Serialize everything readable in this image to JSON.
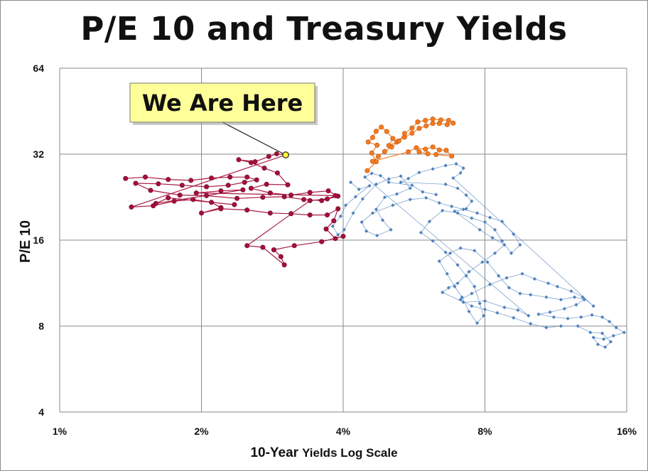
{
  "chart_data": {
    "type": "scatter",
    "title": "P/E 10 and Treasury Yields",
    "xlabel_bold": "10-Year",
    "xlabel_rest": "Yields Log Scale",
    "ylabel": "P/E 10",
    "x_scale": "log",
    "y_scale": "log",
    "xlim": [
      1,
      16
    ],
    "ylim": [
      4,
      64
    ],
    "x_ticks": [
      1,
      2,
      4,
      8,
      16
    ],
    "x_tick_labels": [
      "1%",
      "2%",
      "4%",
      "8%",
      "16%"
    ],
    "y_ticks": [
      4,
      8,
      16,
      32,
      64
    ],
    "y_tick_labels": [
      "4",
      "8",
      "16",
      "32",
      "64"
    ],
    "grid": true,
    "annotation": {
      "text": "We Are Here",
      "target": {
        "x": 3.02,
        "y": 31.8
      }
    },
    "series": [
      {
        "color": "#4f81bd",
        "marker": "diamond",
        "points": [
          [
            4.15,
            25.5
          ],
          [
            4.32,
            24.1
          ],
          [
            4.55,
            24.8
          ],
          [
            4.25,
            22.7
          ],
          [
            4.05,
            21.2
          ],
          [
            3.95,
            19.4
          ],
          [
            3.8,
            17.9
          ],
          [
            3.9,
            16.7
          ],
          [
            4.02,
            17.4
          ],
          [
            4.2,
            19.9
          ],
          [
            4.4,
            22.3
          ],
          [
            4.7,
            25.1
          ],
          [
            5.0,
            26.2
          ],
          [
            5.3,
            26.8
          ],
          [
            5.55,
            24.3
          ],
          [
            5.2,
            23.2
          ],
          [
            4.9,
            22.6
          ],
          [
            4.7,
            20.5
          ],
          [
            4.85,
            18.8
          ],
          [
            5.05,
            17.4
          ],
          [
            4.72,
            16.6
          ],
          [
            4.48,
            17.2
          ],
          [
            4.38,
            18.5
          ],
          [
            4.62,
            19.9
          ],
          [
            5.1,
            21.2
          ],
          [
            5.55,
            22.2
          ],
          [
            6.0,
            22.5
          ],
          [
            6.4,
            21.6
          ],
          [
            6.8,
            21.0
          ],
          [
            7.2,
            20.5
          ],
          [
            7.7,
            19.9
          ],
          [
            8.2,
            19.2
          ],
          [
            8.7,
            18.6
          ],
          [
            9.2,
            16.8
          ],
          [
            9.5,
            15.4
          ],
          [
            9.1,
            14.4
          ],
          [
            8.7,
            15.9
          ],
          [
            8.4,
            17.4
          ],
          [
            8.0,
            18.5
          ],
          [
            7.5,
            19.1
          ],
          [
            7.0,
            19.9
          ],
          [
            6.5,
            20.3
          ],
          [
            6.1,
            18.6
          ],
          [
            5.85,
            17.0
          ],
          [
            6.2,
            15.9
          ],
          [
            6.6,
            14.5
          ],
          [
            7.0,
            13.1
          ],
          [
            7.3,
            12.0
          ],
          [
            7.6,
            11.0
          ],
          [
            7.8,
            9.6
          ],
          [
            7.95,
            8.7
          ],
          [
            7.7,
            8.2
          ],
          [
            7.4,
            9.0
          ],
          [
            7.15,
            10.1
          ],
          [
            6.9,
            11.0
          ],
          [
            6.65,
            12.2
          ],
          [
            6.4,
            13.5
          ],
          [
            6.75,
            14.4
          ],
          [
            7.1,
            15.0
          ],
          [
            7.6,
            14.7
          ],
          [
            8.1,
            13.4
          ],
          [
            8.55,
            12.0
          ],
          [
            9.0,
            10.9
          ],
          [
            9.5,
            10.4
          ],
          [
            10.0,
            10.3
          ],
          [
            10.8,
            10.1
          ],
          [
            11.6,
            9.9
          ],
          [
            12.4,
            10.1
          ],
          [
            13.0,
            9.9
          ],
          [
            12.5,
            9.5
          ],
          [
            11.8,
            9.2
          ],
          [
            11.0,
            8.95
          ],
          [
            10.4,
            8.8
          ],
          [
            11.2,
            8.6
          ],
          [
            12.0,
            8.5
          ],
          [
            12.8,
            8.6
          ],
          [
            13.5,
            8.75
          ],
          [
            14.2,
            8.6
          ],
          [
            14.7,
            8.3
          ],
          [
            15.2,
            7.9
          ],
          [
            15.8,
            7.6
          ],
          [
            15.0,
            7.4
          ],
          [
            14.3,
            7.2
          ],
          [
            13.6,
            7.3
          ],
          [
            13.9,
            6.9
          ],
          [
            14.4,
            6.75
          ],
          [
            14.8,
            7.05
          ],
          [
            14.2,
            7.55
          ],
          [
            13.4,
            7.6
          ],
          [
            12.6,
            8.0
          ],
          [
            11.6,
            8.0
          ],
          [
            10.8,
            7.9
          ],
          [
            10.0,
            8.15
          ],
          [
            9.2,
            8.55
          ],
          [
            8.5,
            8.9
          ],
          [
            8.0,
            9.15
          ],
          [
            7.5,
            9.4
          ],
          [
            7.1,
            9.9
          ],
          [
            7.5,
            10.4
          ],
          [
            8.2,
            11.2
          ],
          [
            8.9,
            11.8
          ],
          [
            9.6,
            12.2
          ],
          [
            10.2,
            11.7
          ],
          [
            10.9,
            11.3
          ],
          [
            11.4,
            11.0
          ],
          [
            12.2,
            10.6
          ],
          [
            12.9,
            10.1
          ],
          [
            13.6,
            9.4
          ],
          [
            6.85,
            26.4
          ],
          [
            7.1,
            27.5
          ],
          [
            7.2,
            28.6
          ],
          [
            6.95,
            29.6
          ],
          [
            6.6,
            29.2
          ],
          [
            6.2,
            28.4
          ],
          [
            5.8,
            27.6
          ],
          [
            5.5,
            26.3
          ],
          [
            5.3,
            25.5
          ],
          [
            6.6,
            25.1
          ],
          [
            7.0,
            24.3
          ],
          [
            7.3,
            23.0
          ],
          [
            7.5,
            21.9
          ],
          [
            7.3,
            20.6
          ],
          [
            6.9,
            20.2
          ],
          [
            7.8,
            17.4
          ],
          [
            8.3,
            16.3
          ],
          [
            8.8,
            15.4
          ],
          [
            8.4,
            14.4
          ],
          [
            7.9,
            13.4
          ],
          [
            7.4,
            12.4
          ],
          [
            7.0,
            11.3
          ],
          [
            6.7,
            10.9
          ],
          [
            6.5,
            10.5
          ],
          [
            7.2,
            9.7
          ],
          [
            8.0,
            9.8
          ],
          [
            8.8,
            9.3
          ],
          [
            9.4,
            9.1
          ],
          [
            9.9,
            8.7
          ],
          [
            4.45,
            26.6
          ],
          [
            4.6,
            27.4
          ],
          [
            4.8,
            26.9
          ],
          [
            5.0,
            25.5
          ],
          [
            5.6,
            24.9
          ],
          [
            5.9,
            23.6
          ],
          [
            6.3,
            23.1
          ]
        ]
      },
      {
        "color": "#a50f3a",
        "marker": "circle",
        "points": [
          [
            1.38,
            26.3
          ],
          [
            1.52,
            26.6
          ],
          [
            1.7,
            26.1
          ],
          [
            1.9,
            25.9
          ],
          [
            2.1,
            26.4
          ],
          [
            2.3,
            26.6
          ],
          [
            2.5,
            26.6
          ],
          [
            2.62,
            26.0
          ],
          [
            2.47,
            25.5
          ],
          [
            2.28,
            24.9
          ],
          [
            2.05,
            24.6
          ],
          [
            1.82,
            24.9
          ],
          [
            1.62,
            25.2
          ],
          [
            1.45,
            25.3
          ],
          [
            1.56,
            23.9
          ],
          [
            1.8,
            23.0
          ],
          [
            2.05,
            22.9
          ],
          [
            2.38,
            22.4
          ],
          [
            2.7,
            22.6
          ],
          [
            3.0,
            22.7
          ],
          [
            3.3,
            22.2
          ],
          [
            3.6,
            22.0
          ],
          [
            3.9,
            22.8
          ],
          [
            3.72,
            23.8
          ],
          [
            3.4,
            23.5
          ],
          [
            3.1,
            23.0
          ],
          [
            2.8,
            23.4
          ],
          [
            2.55,
            24.3
          ],
          [
            2.75,
            25.1
          ],
          [
            3.05,
            25.0
          ],
          [
            2.9,
            27.5
          ],
          [
            2.72,
            28.6
          ],
          [
            2.55,
            29.9
          ],
          [
            2.4,
            30.6
          ],
          [
            2.6,
            30.1
          ],
          [
            2.78,
            31.4
          ],
          [
            2.89,
            32.1
          ],
          [
            3.02,
            31.8
          ],
          [
            1.42,
            20.9
          ],
          [
            1.58,
            21.1
          ],
          [
            1.75,
            21.9
          ],
          [
            1.92,
            22.2
          ],
          [
            2.1,
            21.7
          ],
          [
            2.2,
            20.8
          ],
          [
            2.0,
            19.9
          ],
          [
            2.2,
            20.6
          ],
          [
            2.5,
            20.4
          ],
          [
            2.8,
            19.9
          ],
          [
            3.1,
            19.8
          ],
          [
            3.4,
            19.6
          ],
          [
            3.7,
            19.6
          ],
          [
            3.9,
            20.6
          ],
          [
            3.82,
            18.7
          ],
          [
            3.68,
            17.5
          ],
          [
            3.85,
            16.2
          ],
          [
            4.0,
            16.5
          ],
          [
            3.6,
            15.8
          ],
          [
            3.15,
            15.3
          ],
          [
            2.85,
            14.8
          ],
          [
            2.95,
            14.0
          ],
          [
            3.0,
            13.1
          ],
          [
            2.7,
            15.1
          ],
          [
            2.5,
            15.3
          ],
          [
            3.4,
            22.0
          ],
          [
            3.7,
            22.3
          ],
          [
            3.85,
            22.9
          ],
          [
            1.95,
            23.4
          ],
          [
            2.2,
            23.8
          ],
          [
            2.45,
            24.0
          ],
          [
            1.6,
            21.5
          ],
          [
            1.7,
            22.5
          ],
          [
            2.35,
            21.3
          ]
        ]
      },
      {
        "color": "#f47b20",
        "marker": "circle",
        "points": [
          [
            4.5,
            28.0
          ],
          [
            4.7,
            30.1
          ],
          [
            4.6,
            32.3
          ],
          [
            4.72,
            34.4
          ],
          [
            4.52,
            35.3
          ],
          [
            4.62,
            36.6
          ],
          [
            4.7,
            38.5
          ],
          [
            4.82,
            39.8
          ],
          [
            4.95,
            38.4
          ],
          [
            5.1,
            36.3
          ],
          [
            5.0,
            34.3
          ],
          [
            5.2,
            35.3
          ],
          [
            5.4,
            36.7
          ],
          [
            5.6,
            37.9
          ],
          [
            5.8,
            39.4
          ],
          [
            6.0,
            40.2
          ],
          [
            6.2,
            41.0
          ],
          [
            6.4,
            41.0
          ],
          [
            6.65,
            40.6
          ],
          [
            6.85,
            41.1
          ],
          [
            6.7,
            42.0
          ],
          [
            6.45,
            42.2
          ],
          [
            6.2,
            42.5
          ],
          [
            5.98,
            42.0
          ],
          [
            5.76,
            41.5
          ],
          [
            5.6,
            39.5
          ],
          [
            5.4,
            37.8
          ],
          [
            5.25,
            35.6
          ],
          [
            5.07,
            33.9
          ],
          [
            4.9,
            32.7
          ],
          [
            4.75,
            31.4
          ],
          [
            4.62,
            30.2
          ],
          [
            5.5,
            32.6
          ],
          [
            5.72,
            33.7
          ],
          [
            5.98,
            33.3
          ],
          [
            6.2,
            33.9
          ],
          [
            6.4,
            33.1
          ],
          [
            6.62,
            33.0
          ],
          [
            6.8,
            31.5
          ],
          [
            6.3,
            31.9
          ],
          [
            6.05,
            32.1
          ],
          [
            5.8,
            32.6
          ]
        ]
      }
    ]
  }
}
